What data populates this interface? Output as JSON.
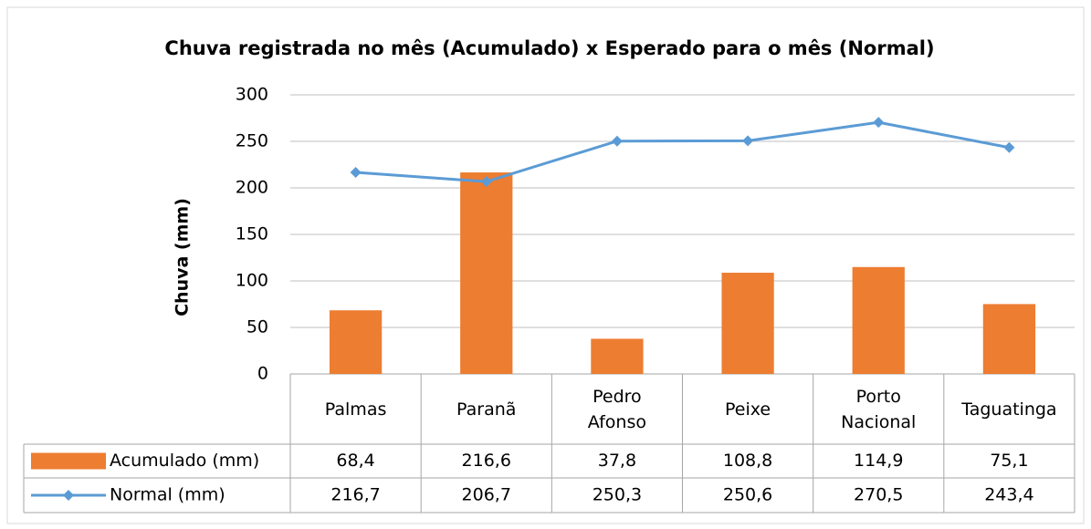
{
  "chart_data": {
    "type": "bar",
    "title": "Chuva registrada  no mês (Acumulado)  x Esperado para o mês (Normal)",
    "y_label": "Chuva (mm)",
    "categories": [
      "Palmas",
      "Paranã",
      "Pedro Afonso",
      "Peixe",
      "Porto Nacional",
      "Taguatinga"
    ],
    "series": [
      {
        "name": "Acumulado (mm)",
        "type": "bar",
        "color": "#ed7d31",
        "values": [
          68.4,
          216.6,
          37.8,
          108.8,
          114.9,
          75.1
        ],
        "value_labels": [
          "68,4",
          "216,6",
          "37,8",
          "108,8",
          "114,9",
          "75,1"
        ]
      },
      {
        "name": "Normal (mm)",
        "type": "line",
        "color": "#5b9bd5",
        "values": [
          216.7,
          206.7,
          250.3,
          250.6,
          270.5,
          243.4
        ],
        "value_labels": [
          "216,7",
          "206,7",
          "250,3",
          "250,6",
          "270,5",
          "243,4"
        ]
      }
    ],
    "ylim": [
      0,
      300
    ],
    "yticks": [
      0,
      50,
      100,
      150,
      200,
      250,
      300
    ],
    "grid": true
  }
}
